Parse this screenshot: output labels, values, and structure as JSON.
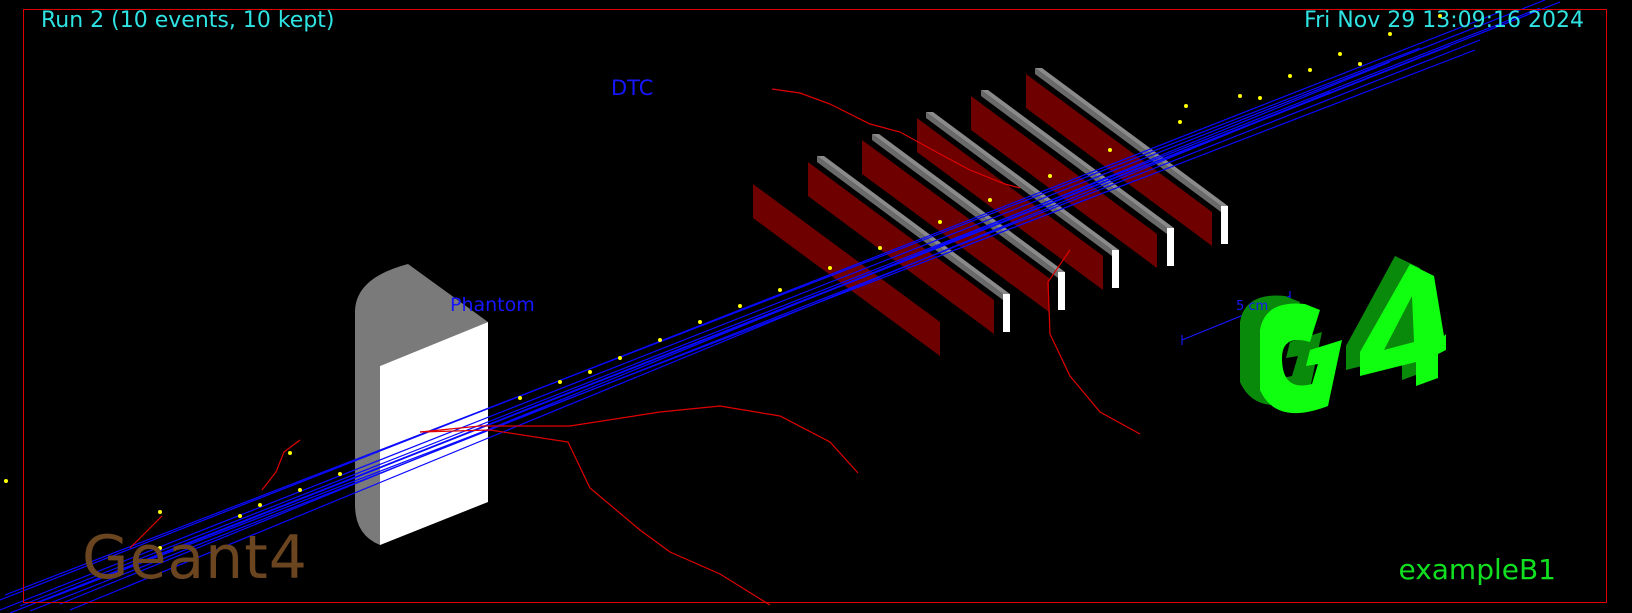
{
  "header": {
    "run_info": "Run 2 (10 events, 10 kept)",
    "datetime": "Fri Nov 29 13:09:16 2024"
  },
  "scene": {
    "detector_label": "DTC",
    "phantom_label": "Phantom",
    "scale_label": "5 cm",
    "geant4_logo": "Geant4",
    "g4_logo": "G4",
    "example_label": "exampleB1"
  },
  "colors": {
    "background": "#000000",
    "frame": "#e00000",
    "info_text": "#2fe3e3",
    "label_text": "#1616ff",
    "example_text": "#10e020",
    "geant4_text": "#6b4520",
    "track_primary": "#0a0aff",
    "track_secondary": "#e00000",
    "step_points": "#ffff00",
    "detector_plate": "#6e0000",
    "detector_bar": "#808080",
    "phantom_body": "#ffffff",
    "phantom_side": "#7a7a7a",
    "g4_front": "#10ff10",
    "g4_side": "#0a8a0a"
  }
}
